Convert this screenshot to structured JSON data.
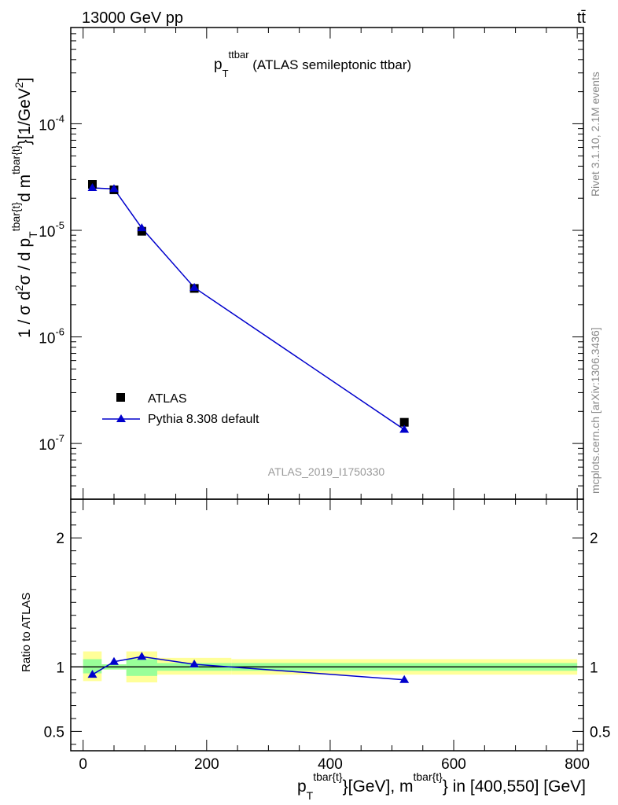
{
  "header": {
    "energy_label": "13000 GeV pp",
    "process_label": "tt̄"
  },
  "plot_title": {
    "main": "p",
    "sub": "T",
    "sup": "ttbar",
    "rest": " (ATLAS semileptonic ttbar)"
  },
  "side_text": {
    "rivet": "Rivet 3.1.10,  2.1M events",
    "mcplots": "mcplots.cern.ch [arXiv:1306.3436]"
  },
  "analysis_id": "ATLAS_2019_I1750330",
  "main_ylabel": {
    "pre": "1 / σ d",
    "sup2": "2",
    "mid": "σ / d p",
    "subT": "T",
    "supT": "tbar{t}",
    "mid2": "d m",
    "supM": "tbar{t}",
    "end": "}[1/GeV",
    "supU": "2",
    "close": "]"
  },
  "ratio_ylabel": "Ratio to ATLAS",
  "xlabel": {
    "p": "p",
    "subT": "T",
    "supT": "tbar{t}",
    "mid": "}[GeV], m",
    "supM": "tbar{t}",
    "end": "} in [400,550] [GeV]"
  },
  "legend": {
    "data_label": "ATLAS",
    "mc_label": "Pythia 8.308 default"
  },
  "colors": {
    "data": "#000000",
    "mc": "#0000cc",
    "band_outer": "#ffff99",
    "band_inner": "#99ff99"
  },
  "chart_data": [
    {
      "type": "scatter",
      "title": "",
      "yscale": "log",
      "xlim": [
        -20,
        810
      ],
      "ylim": [
        3e-08,
        0.0008
      ],
      "x_ticks": [
        0,
        200,
        400,
        600,
        800
      ],
      "y_ticks": [
        {
          "value": 1e-07,
          "label": "10",
          "exp": "-7"
        },
        {
          "value": 1e-06,
          "label": "10",
          "exp": "-6"
        },
        {
          "value": 1e-05,
          "label": "10",
          "exp": "-5"
        },
        {
          "value": 0.0001,
          "label": "10",
          "exp": "-4"
        }
      ],
      "series": [
        {
          "name": "ATLAS",
          "marker": "square",
          "x": [
            15,
            50,
            95,
            180,
            520
          ],
          "y": [
            2.7e-05,
            2.4e-05,
            9.8e-06,
            2.85e-06,
            1.58e-07
          ]
        },
        {
          "name": "Pythia 8.308 default",
          "marker": "triangle",
          "x": [
            15,
            50,
            95,
            180,
            520
          ],
          "y": [
            2.5e-05,
            2.45e-05,
            1.05e-05,
            2.9e-06,
            1.35e-07
          ]
        }
      ]
    },
    {
      "type": "line",
      "xlim": [
        -20,
        810
      ],
      "ylim": [
        0.35,
        2.3
      ],
      "y_ticks": [
        {
          "value": 0.5,
          "label": "0.5"
        },
        {
          "value": 1,
          "label": "1"
        },
        {
          "value": 2,
          "label": "2"
        }
      ],
      "bins": [
        [
          0,
          30
        ],
        [
          30,
          70
        ],
        [
          70,
          120
        ],
        [
          120,
          240
        ],
        [
          240,
          800
        ]
      ],
      "band_outer": [
        [
          0.89,
          1.12
        ],
        [
          0.98,
          1.02
        ],
        [
          0.88,
          1.12
        ],
        [
          0.94,
          1.07
        ],
        [
          0.94,
          1.06
        ]
      ],
      "band_inner": [
        [
          0.95,
          1.06
        ],
        [
          0.98,
          1.02
        ],
        [
          0.93,
          1.06
        ],
        [
          0.97,
          1.03
        ],
        [
          0.97,
          1.03
        ]
      ],
      "series": [
        {
          "name": "Pythia 8.308 default",
          "x": [
            15,
            50,
            95,
            180,
            520
          ],
          "values": [
            0.94,
            1.04,
            1.08,
            1.02,
            0.9
          ]
        }
      ]
    }
  ]
}
